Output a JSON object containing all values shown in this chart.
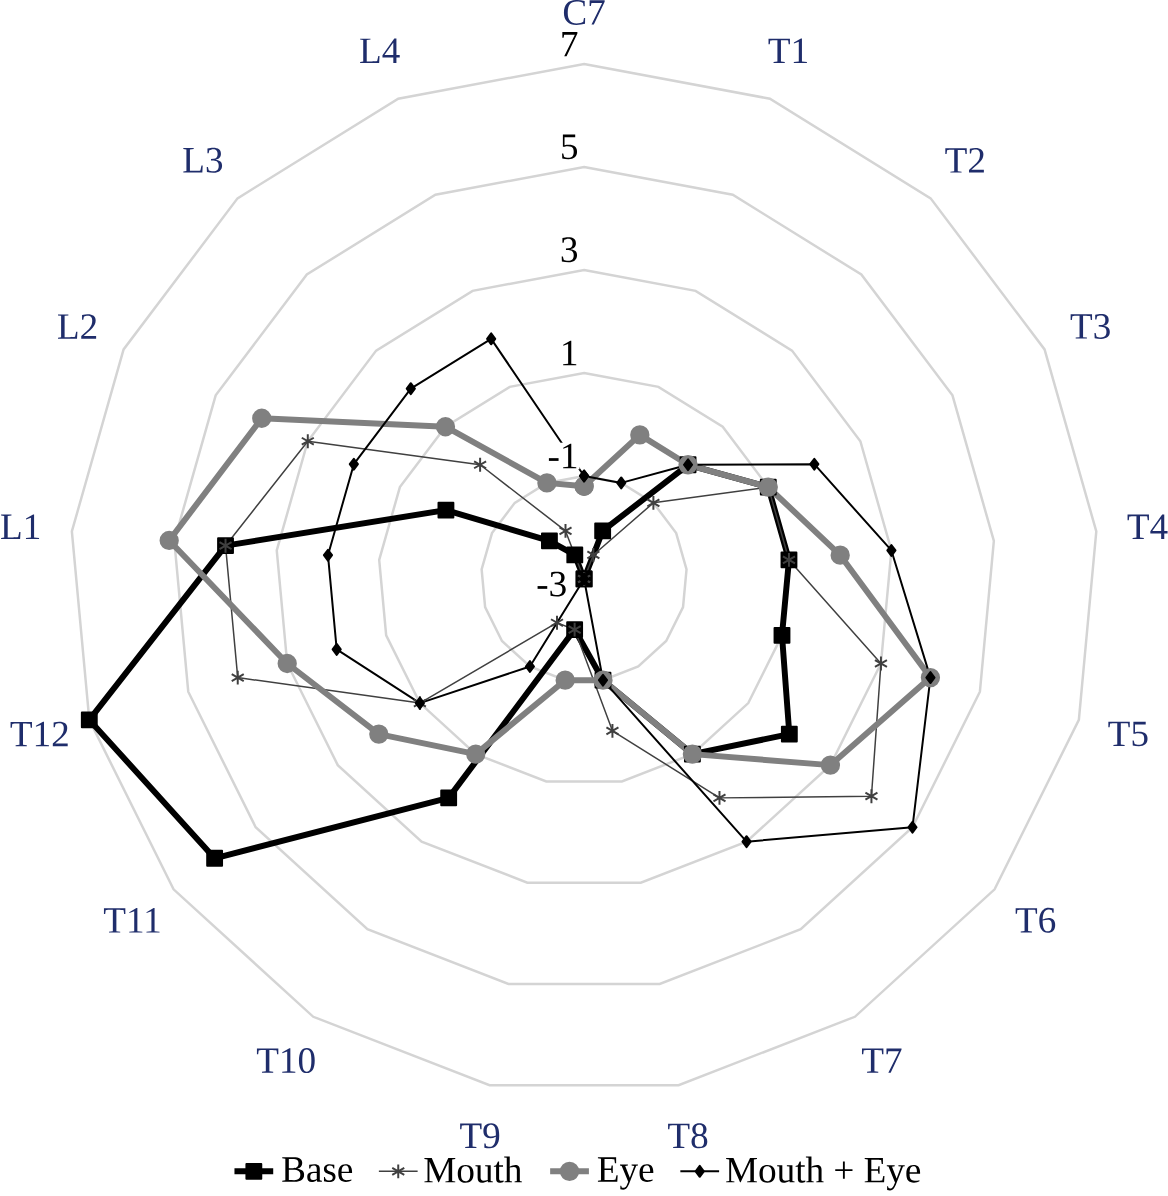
{
  "chart_data": {
    "type": "radar",
    "categories": [
      "C7",
      "T1",
      "T2",
      "T3",
      "T4",
      "T5",
      "T6",
      "T7",
      "T8",
      "T9",
      "T10",
      "T11",
      "T12",
      "L1",
      "L2",
      "L3",
      "L4"
    ],
    "ylim": [
      -3,
      7
    ],
    "yticks": [
      -3,
      -1,
      1,
      3,
      5,
      7
    ],
    "grid": true,
    "legend": "bottom",
    "series": [
      {
        "name": "Base",
        "color": "#000000",
        "marker": "square",
        "values": [
          -3,
          -2,
          0,
          1,
          1,
          1,
          2,
          1,
          -1,
          -2,
          2,
          6,
          7,
          4,
          0,
          -2,
          -2.5
        ]
      },
      {
        "name": "Mouth",
        "color": "#404040",
        "marker": "star",
        "values": [
          -3,
          -2.5,
          -1,
          1,
          1,
          3,
          4,
          2,
          0,
          -2,
          -2,
          1,
          4,
          4,
          3,
          0,
          -2
        ]
      },
      {
        "name": "Eye",
        "color": "#808080",
        "marker": "circle",
        "values": [
          -1.2,
          0,
          0,
          1,
          2,
          4,
          3,
          1,
          -1,
          -1,
          1,
          2,
          3,
          5.1,
          4,
          1,
          -1
        ]
      },
      {
        "name": "Mouth + Eye",
        "color": "#000000",
        "marker": "diamond",
        "values": [
          -1,
          -1,
          0,
          2,
          3,
          4,
          5,
          3,
          -1,
          -3,
          -1,
          1,
          2,
          2,
          2,
          2,
          2
        ]
      }
    ]
  }
}
